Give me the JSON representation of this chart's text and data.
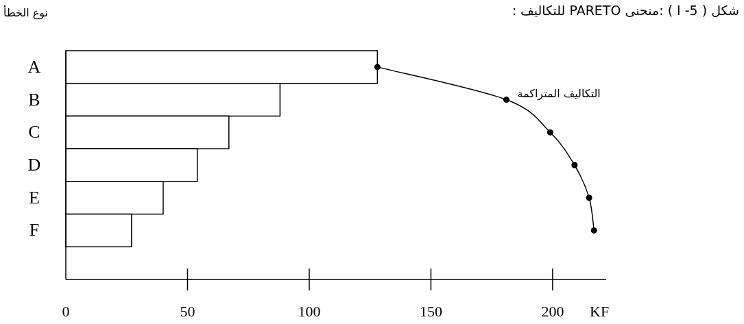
{
  "chart_data": {
    "type": "bar",
    "orientation": "horizontal",
    "title": "شكل ( I -5 ) :منحنى PARETO للتكاليف :",
    "xlabel": "KF",
    "ylabel": "نوع الخطأ",
    "categories": [
      "A",
      "B",
      "C",
      "D",
      "E",
      "F"
    ],
    "xlim": [
      0,
      222
    ],
    "xticks": [
      0,
      50,
      100,
      150,
      200
    ],
    "grid": false,
    "marker": "circle",
    "series": [
      {
        "color": "#ffffff",
        "values": [
          128,
          88,
          67,
          54,
          40,
          27
        ]
      },
      {
        "type": "line",
        "name": "التكاليف المتراكمة",
        "color": "#000000",
        "values": [
          128,
          181,
          199,
          209,
          215,
          217
        ]
      }
    ]
  }
}
